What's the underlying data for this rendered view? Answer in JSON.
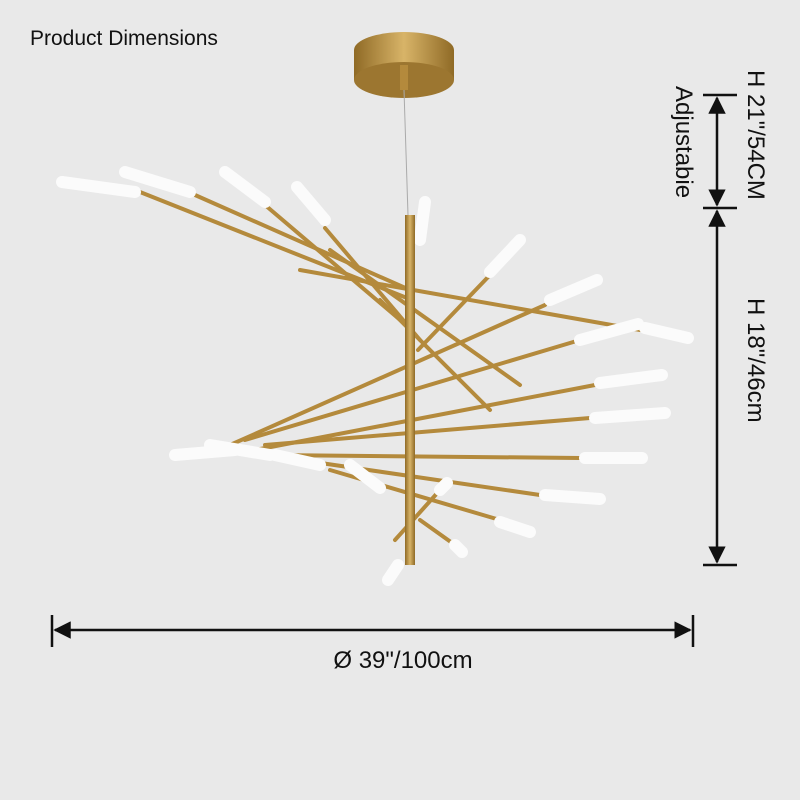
{
  "header": {
    "title": "Product Dimensions"
  },
  "dimensions": {
    "adjustable_height": "H 21\"/54CM",
    "adjustable_note": "Adjustabie",
    "body_height": "H 18\"/46cm",
    "diameter": "Ø 39\"/100cm"
  }
}
